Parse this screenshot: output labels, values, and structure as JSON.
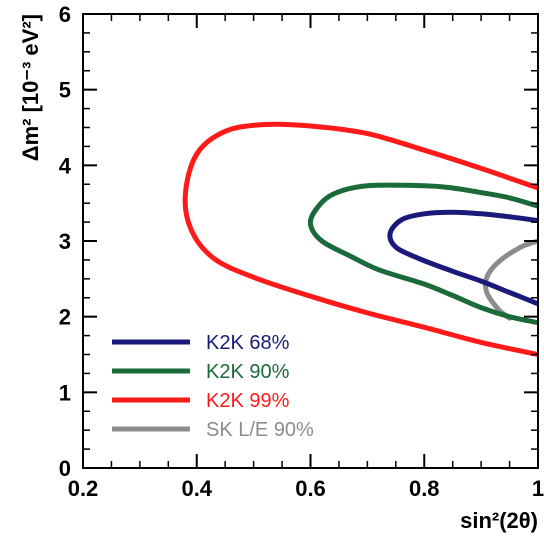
{
  "chart_data": {
    "type": "line",
    "xlabel": "sin²(2θ)",
    "ylabel": "Δm² [10⁻³ eV²]",
    "xlim": [
      0.2,
      1.0
    ],
    "ylim": [
      0,
      6
    ],
    "x_ticks": [
      "0.2",
      "0.4",
      "0.6",
      "0.8",
      "1"
    ],
    "y_ticks": [
      "0",
      "1",
      "2",
      "3",
      "4",
      "5",
      "6"
    ],
    "grid": false,
    "legend_position": "bottom-left",
    "series": [
      {
        "name": "K2K 68%",
        "color": "#1a1a7a",
        "points": [
          [
            1.0,
            3.27
          ],
          [
            0.95,
            3.32
          ],
          [
            0.9,
            3.36
          ],
          [
            0.85,
            3.38
          ],
          [
            0.8,
            3.36
          ],
          [
            0.76,
            3.28
          ],
          [
            0.74,
            3.1
          ],
          [
            0.75,
            2.92
          ],
          [
            0.79,
            2.77
          ],
          [
            0.85,
            2.6
          ],
          [
            0.9,
            2.47
          ],
          [
            0.95,
            2.32
          ],
          [
            1.0,
            2.17
          ]
        ]
      },
      {
        "name": "K2K 90%",
        "color": "#1a6a3a",
        "points": [
          [
            1.0,
            3.46
          ],
          [
            0.95,
            3.57
          ],
          [
            0.9,
            3.64
          ],
          [
            0.85,
            3.7
          ],
          [
            0.8,
            3.73
          ],
          [
            0.7,
            3.73
          ],
          [
            0.64,
            3.62
          ],
          [
            0.61,
            3.42
          ],
          [
            0.6,
            3.22
          ],
          [
            0.62,
            3.0
          ],
          [
            0.67,
            2.8
          ],
          [
            0.72,
            2.62
          ],
          [
            0.8,
            2.43
          ],
          [
            0.85,
            2.28
          ],
          [
            0.9,
            2.12
          ],
          [
            0.95,
            2.0
          ],
          [
            1.0,
            1.92
          ]
        ]
      },
      {
        "name": "K2K 99%",
        "color": "#ff1a1a",
        "points": [
          [
            1.0,
            3.7
          ],
          [
            0.9,
            3.96
          ],
          [
            0.8,
            4.2
          ],
          [
            0.7,
            4.42
          ],
          [
            0.6,
            4.52
          ],
          [
            0.52,
            4.54
          ],
          [
            0.45,
            4.45
          ],
          [
            0.4,
            4.15
          ],
          [
            0.38,
            3.62
          ],
          [
            0.39,
            3.15
          ],
          [
            0.43,
            2.77
          ],
          [
            0.5,
            2.52
          ],
          [
            0.6,
            2.27
          ],
          [
            0.7,
            2.05
          ],
          [
            0.8,
            1.86
          ],
          [
            0.9,
            1.66
          ],
          [
            1.0,
            1.5
          ]
        ]
      },
      {
        "name": "SK L/E 90%",
        "color": "#8c8c8c",
        "points": [
          [
            1.0,
            3.0
          ],
          [
            0.97,
            2.92
          ],
          [
            0.93,
            2.72
          ],
          [
            0.91,
            2.52
          ],
          [
            0.91,
            2.32
          ],
          [
            0.93,
            2.1
          ],
          [
            0.95,
            1.98
          ]
        ]
      }
    ]
  }
}
